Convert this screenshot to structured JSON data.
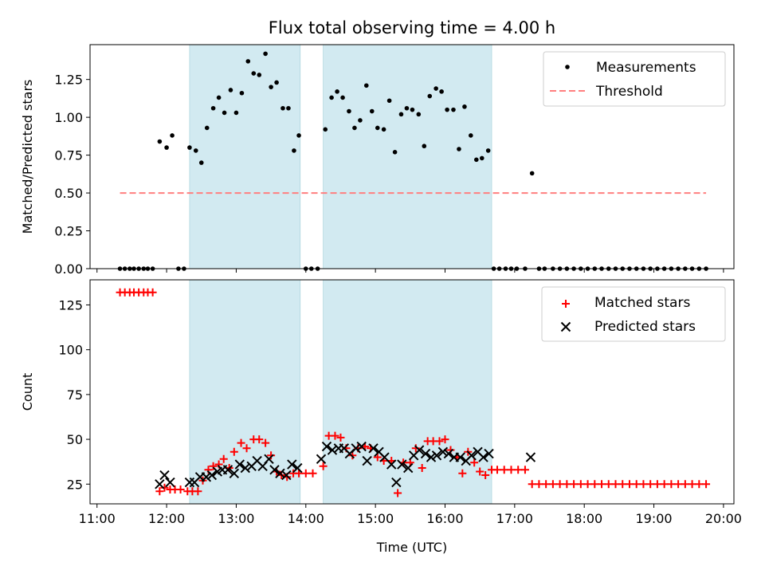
{
  "title": "Flux total observing time = 4.00 h",
  "xlabel": "Time (UTC)",
  "x_tick_labels": [
    "11:00",
    "12:00",
    "13:00",
    "14:00",
    "15:00",
    "16:00",
    "17:00",
    "18:00",
    "19:00",
    "20:00"
  ],
  "colors": {
    "measurements": "#000000",
    "threshold": "#ff7f7f",
    "matched": "#ff0000",
    "predicted": "#000000",
    "shading": "#add8e6"
  },
  "chart_data": [
    {
      "type": "scatter",
      "panel": "top",
      "ylabel": "Matched/Predicted stars",
      "x_unit": "decimal hours UTC",
      "xlim": [
        10.9,
        20.15
      ],
      "ylim": [
        0,
        1.48
      ],
      "y_ticks": [
        "0.00",
        "0.25",
        "0.50",
        "0.75",
        "1.00",
        "1.25"
      ],
      "legend": {
        "position": "top-right",
        "entries": [
          "Measurements",
          "Threshold"
        ]
      },
      "shaded_intervals": [
        [
          12.33,
          13.92
        ],
        [
          14.25,
          16.67
        ]
      ],
      "threshold": {
        "name": "Threshold",
        "y": 0.5,
        "x": [
          11.33,
          19.75
        ]
      },
      "series": [
        {
          "name": "Measurements",
          "marker": "dot",
          "x": [
            11.33,
            11.4,
            11.47,
            11.53,
            11.6,
            11.67,
            11.73,
            11.8,
            11.9,
            12.0,
            12.08,
            12.17,
            12.25,
            12.33,
            12.42,
            12.5,
            12.58,
            12.67,
            12.75,
            12.83,
            12.92,
            13.0,
            13.08,
            13.17,
            13.25,
            13.33,
            13.42,
            13.5,
            13.58,
            13.67,
            13.75,
            13.83,
            13.9,
            14.0,
            14.08,
            14.17,
            14.28,
            14.37,
            14.45,
            14.53,
            14.62,
            14.7,
            14.78,
            14.87,
            14.95,
            15.03,
            15.12,
            15.2,
            15.28,
            15.37,
            15.45,
            15.53,
            15.62,
            15.7,
            15.78,
            15.87,
            15.95,
            16.03,
            16.12,
            16.2,
            16.28,
            16.37,
            16.45,
            16.53,
            16.62,
            16.7,
            16.78,
            16.87,
            16.95,
            17.03,
            17.15,
            17.25,
            17.35,
            17.43,
            17.55,
            17.65,
            17.75,
            17.85,
            17.95,
            18.05,
            18.15,
            18.25,
            18.35,
            18.45,
            18.55,
            18.65,
            18.75,
            18.85,
            18.95,
            19.05,
            19.15,
            19.25,
            19.35,
            19.45,
            19.55,
            19.65,
            19.75
          ],
          "y": [
            0,
            0,
            0,
            0,
            0,
            0,
            0,
            0,
            0.84,
            0.8,
            0.88,
            0,
            0,
            0.8,
            0.78,
            0.7,
            0.93,
            1.06,
            1.13,
            1.03,
            1.18,
            1.03,
            1.16,
            1.37,
            1.29,
            1.28,
            1.42,
            1.2,
            1.23,
            1.06,
            1.06,
            0.78,
            0.88,
            0,
            0,
            0,
            0.92,
            1.13,
            1.17,
            1.13,
            1.04,
            0.93,
            0.98,
            1.21,
            1.04,
            0.93,
            0.92,
            1.11,
            0.77,
            1.02,
            1.06,
            1.05,
            1.02,
            0.81,
            1.14,
            1.19,
            1.17,
            1.05,
            1.05,
            0.79,
            1.07,
            0.88,
            0.72,
            0.73,
            0.78,
            0,
            0,
            0,
            0,
            0,
            0,
            0.63,
            0,
            0,
            0,
            0,
            0,
            0,
            0,
            0,
            0,
            0,
            0,
            0,
            0,
            0,
            0,
            0,
            0,
            0,
            0,
            0,
            0,
            0,
            0,
            0,
            0
          ]
        }
      ]
    },
    {
      "type": "scatter",
      "panel": "bottom",
      "ylabel": "Count",
      "x_unit": "decimal hours UTC",
      "xlim": [
        10.9,
        20.15
      ],
      "ylim": [
        14,
        139
      ],
      "y_ticks": [
        "25",
        "50",
        "75",
        "100",
        "125"
      ],
      "legend": {
        "position": "top-right",
        "entries": [
          "Matched stars",
          "Predicted stars"
        ]
      },
      "shaded_intervals": [
        [
          12.33,
          13.92
        ],
        [
          14.25,
          16.67
        ]
      ],
      "series": [
        {
          "name": "Matched stars",
          "marker": "plus",
          "x": [
            11.33,
            11.4,
            11.47,
            11.53,
            11.6,
            11.67,
            11.73,
            11.8,
            11.9,
            11.97,
            12.05,
            12.12,
            12.2,
            12.3,
            12.37,
            12.45,
            12.52,
            12.6,
            12.67,
            12.75,
            12.82,
            12.9,
            12.97,
            13.07,
            13.15,
            13.25,
            13.33,
            13.42,
            13.5,
            13.58,
            13.65,
            13.73,
            13.82,
            13.9,
            14.0,
            14.1,
            14.25,
            14.33,
            14.42,
            14.5,
            14.58,
            14.67,
            14.75,
            14.85,
            14.93,
            15.03,
            15.12,
            15.23,
            15.32,
            15.4,
            15.5,
            15.58,
            15.67,
            15.75,
            15.83,
            15.92,
            16.0,
            16.08,
            16.17,
            16.25,
            16.33,
            16.42,
            16.5,
            16.58,
            16.67,
            16.75,
            16.85,
            16.95,
            17.05,
            17.15,
            17.25,
            17.35,
            17.45,
            17.55,
            17.65,
            17.75,
            17.85,
            17.95,
            18.05,
            18.15,
            18.25,
            18.35,
            18.45,
            18.55,
            18.65,
            18.75,
            18.85,
            18.95,
            19.05,
            19.15,
            19.25,
            19.35,
            19.45,
            19.55,
            19.65,
            19.75
          ],
          "y": [
            132,
            132,
            132,
            132,
            132,
            132,
            132,
            132,
            21,
            23,
            22,
            22,
            22,
            21,
            21,
            21,
            27,
            33,
            35,
            36,
            39,
            34,
            43,
            48,
            45,
            50,
            50,
            48,
            41,
            32,
            30,
            29,
            31,
            31,
            31,
            31,
            35,
            52,
            52,
            51,
            45,
            41,
            45,
            46,
            45,
            40,
            38,
            38,
            20,
            37,
            37,
            45,
            34,
            49,
            49,
            49,
            50,
            44,
            40,
            31,
            43,
            37,
            32,
            30,
            33,
            33,
            33,
            33,
            33,
            33,
            25,
            25,
            25,
            25,
            25,
            25,
            25,
            25,
            25,
            25,
            25,
            25,
            25,
            25,
            25,
            25,
            25,
            25,
            25,
            25,
            25,
            25,
            25,
            25,
            25,
            25
          ]
        },
        {
          "name": "Predicted stars",
          "marker": "x",
          "x": [
            11.9,
            11.97,
            12.05,
            12.33,
            12.4,
            12.48,
            12.57,
            12.65,
            12.73,
            12.8,
            12.88,
            12.97,
            13.05,
            13.13,
            13.22,
            13.3,
            13.38,
            13.47,
            13.55,
            13.63,
            13.72,
            13.8,
            13.88,
            14.22,
            14.3,
            14.38,
            14.47,
            14.55,
            14.63,
            14.72,
            14.8,
            14.88,
            14.97,
            15.05,
            15.13,
            15.23,
            15.3,
            15.38,
            15.47,
            15.55,
            15.63,
            15.72,
            15.8,
            15.88,
            15.97,
            16.05,
            16.13,
            16.22,
            16.3,
            16.38,
            16.47,
            16.55,
            16.63,
            17.23
          ],
          "y": [
            25,
            30,
            26,
            26,
            26,
            29,
            29,
            30,
            32,
            33,
            33,
            31,
            36,
            34,
            35,
            38,
            35,
            39,
            33,
            31,
            30,
            36,
            34,
            39,
            46,
            44,
            45,
            45,
            42,
            45,
            46,
            38,
            45,
            43,
            40,
            36,
            26,
            36,
            34,
            41,
            44,
            42,
            40,
            41,
            43,
            42,
            40,
            40,
            38,
            41,
            43,
            40,
            42,
            40
          ]
        }
      ]
    }
  ]
}
